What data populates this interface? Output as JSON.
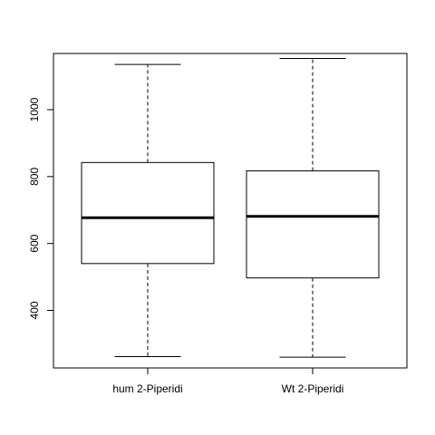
{
  "chart_data": {
    "type": "boxplot",
    "title": "",
    "xlabel": "",
    "ylabel": "",
    "ylim": [
      228,
      1168
    ],
    "y_ticks": [
      400,
      600,
      800,
      1000
    ],
    "y_tick_labels": [
      "400",
      "600",
      "800",
      "1000"
    ],
    "grid": false,
    "categories": [
      "hum 2-Piperidi",
      "Wt 2-Piperidi"
    ],
    "boxes": [
      {
        "label": "hum 2-Piperidi",
        "whisker_low": 262,
        "q1": 540,
        "median": 677,
        "q3": 842,
        "whisker_high": 1135
      },
      {
        "label": "Wt 2-Piperidi",
        "whisker_low": 260,
        "q1": 497,
        "median": 681,
        "q3": 817,
        "whisker_high": 1153
      }
    ]
  }
}
